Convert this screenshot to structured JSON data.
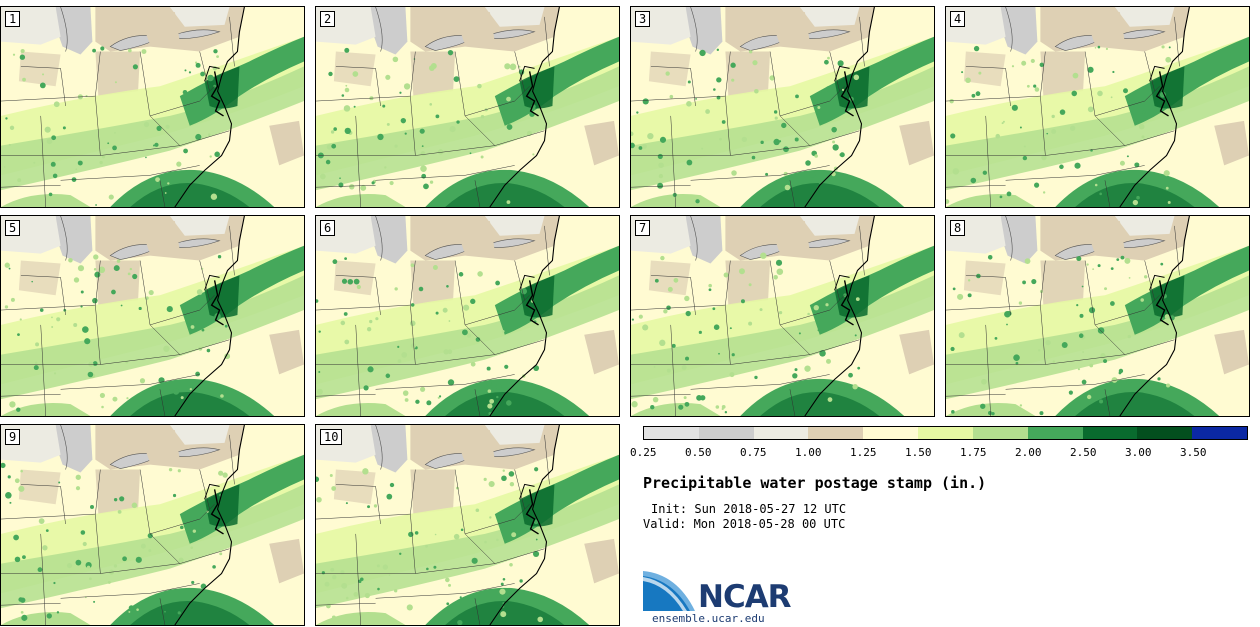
{
  "panels": [
    "1",
    "2",
    "3",
    "4",
    "5",
    "6",
    "7",
    "8",
    "9",
    "10"
  ],
  "legend": {
    "colors": [
      "#e2e2e2",
      "#cdcdcd",
      "#ecebe2",
      "#ded0b4",
      "#fffbd2",
      "#e6f8a3",
      "#b3df8f",
      "#45a85b",
      "#096b2e",
      "#034f1e",
      "#0b28a4"
    ],
    "ticks": [
      "0.25",
      "0.50",
      "0.75",
      "1.00",
      "1.25",
      "1.50",
      "1.75",
      "2.00",
      "2.50",
      "3.00",
      "3.50"
    ]
  },
  "title": "Precipitable water postage stamp (in.)",
  "init": "Init: Sun 2018-05-27 12 UTC",
  "valid": "Valid: Mon 2018-05-28 00 UTC",
  "logo": {
    "name": "NCAR",
    "url": "ensemble.ucar.edu"
  }
}
